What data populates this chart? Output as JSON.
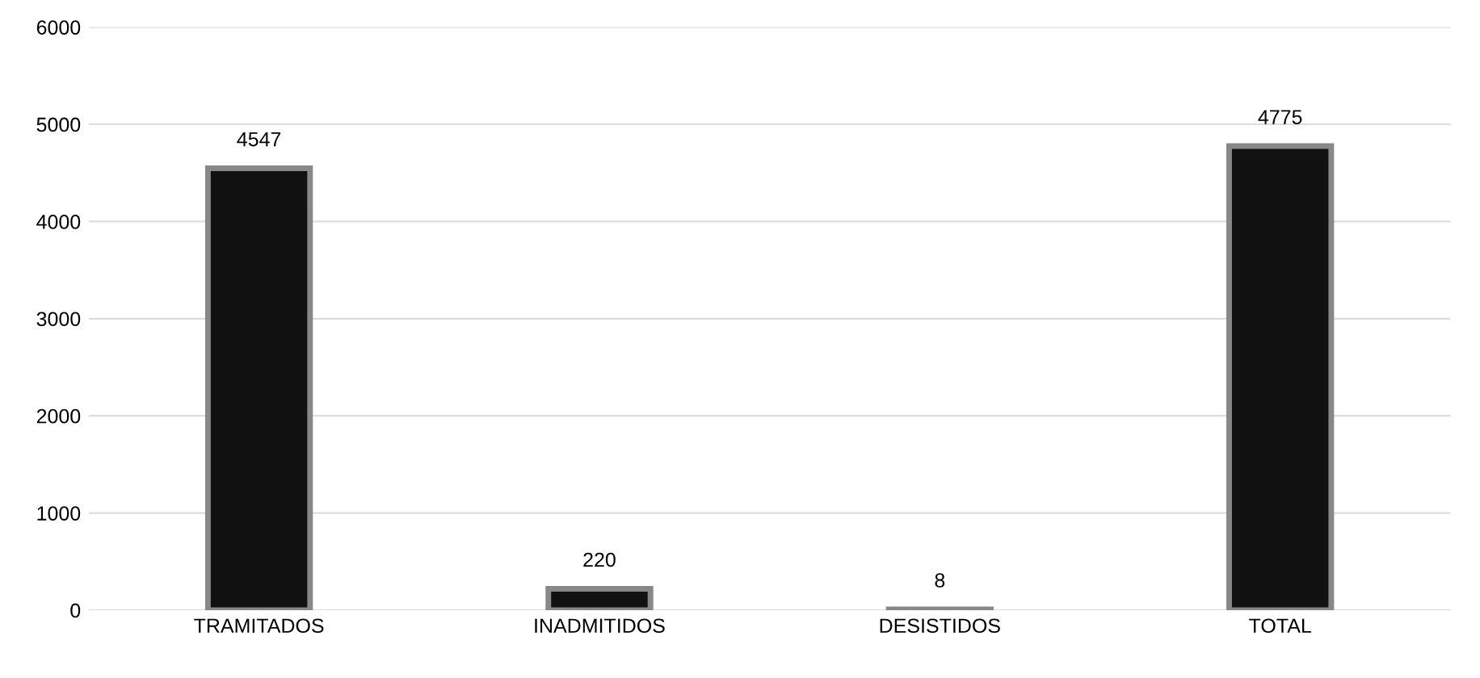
{
  "chart_data": {
    "type": "bar",
    "categories": [
      "TRAMITADOS",
      "INADMITIDOS",
      "DESISTIDOS",
      "TOTAL"
    ],
    "values": [
      4547,
      220,
      8,
      4775
    ],
    "color": "#111111",
    "ylim": [
      0,
      6000
    ],
    "yticks": [
      0,
      1000,
      2000,
      3000,
      4000,
      5000,
      6000
    ],
    "grid": "y",
    "data_labels": true
  }
}
